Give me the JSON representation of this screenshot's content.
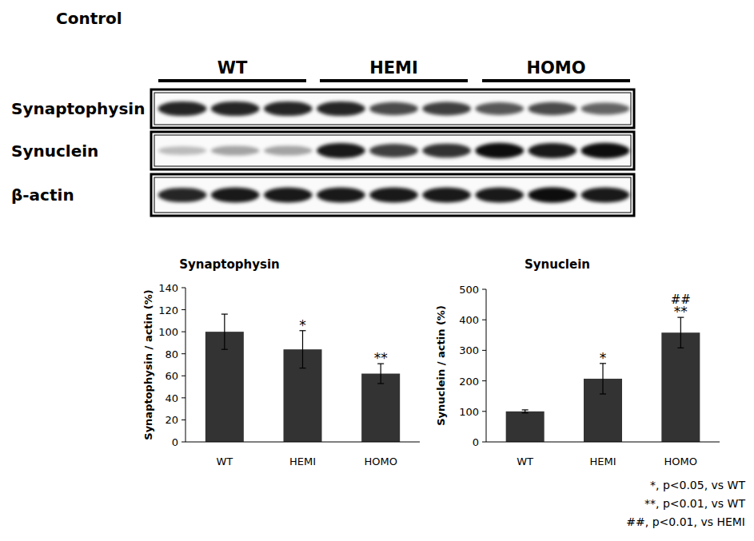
{
  "figure": {
    "title": "Control",
    "blot": {
      "groups": [
        "WT",
        "HEMI",
        "HOMO"
      ],
      "lanes_per_group": 3,
      "rows": [
        {
          "label": "Synaptophysin",
          "intensity": [
            0.85,
            0.85,
            0.85,
            0.85,
            0.7,
            0.75,
            0.65,
            0.7,
            0.6
          ]
        },
        {
          "label": "Synuclein",
          "intensity": [
            0.25,
            0.35,
            0.35,
            0.9,
            0.75,
            0.8,
            0.95,
            0.9,
            0.95
          ]
        },
        {
          "label": "β-actin",
          "intensity": [
            0.85,
            0.9,
            0.9,
            0.9,
            0.9,
            0.9,
            0.9,
            0.95,
            0.9
          ]
        }
      ]
    },
    "footnotes": [
      "*, p<0.05, vs WT",
      "**, p<0.01, vs WT",
      "##, p<0.01, vs HEMI"
    ]
  },
  "chart_data": [
    {
      "type": "bar",
      "title": "Synaptophysin",
      "y_label": "Synaptophysin / actin (%)",
      "categories": [
        "WT",
        "HEMI",
        "HOMO"
      ],
      "values": [
        100,
        84,
        62
      ],
      "errors": [
        16,
        17,
        9
      ],
      "significance": [
        null,
        "*",
        "**"
      ],
      "significance_vs_hemi": [
        null,
        null,
        null
      ],
      "color": "#333333",
      "ylim": [
        0,
        140
      ],
      "yticks": [
        0,
        20,
        40,
        60,
        80,
        100,
        120,
        140
      ],
      "grid": false
    },
    {
      "type": "bar",
      "title": "Synuclein",
      "y_label": "Synuclein / actin (%)",
      "categories": [
        "WT",
        "HEMI",
        "HOMO"
      ],
      "values": [
        100,
        207,
        358
      ],
      "errors": [
        5,
        50,
        50
      ],
      "significance": [
        null,
        "*",
        "**"
      ],
      "significance_vs_hemi": [
        null,
        null,
        "##"
      ],
      "color": "#333333",
      "ylim": [
        0,
        500
      ],
      "yticks": [
        0,
        100,
        200,
        300,
        400,
        500
      ],
      "grid": false
    }
  ]
}
